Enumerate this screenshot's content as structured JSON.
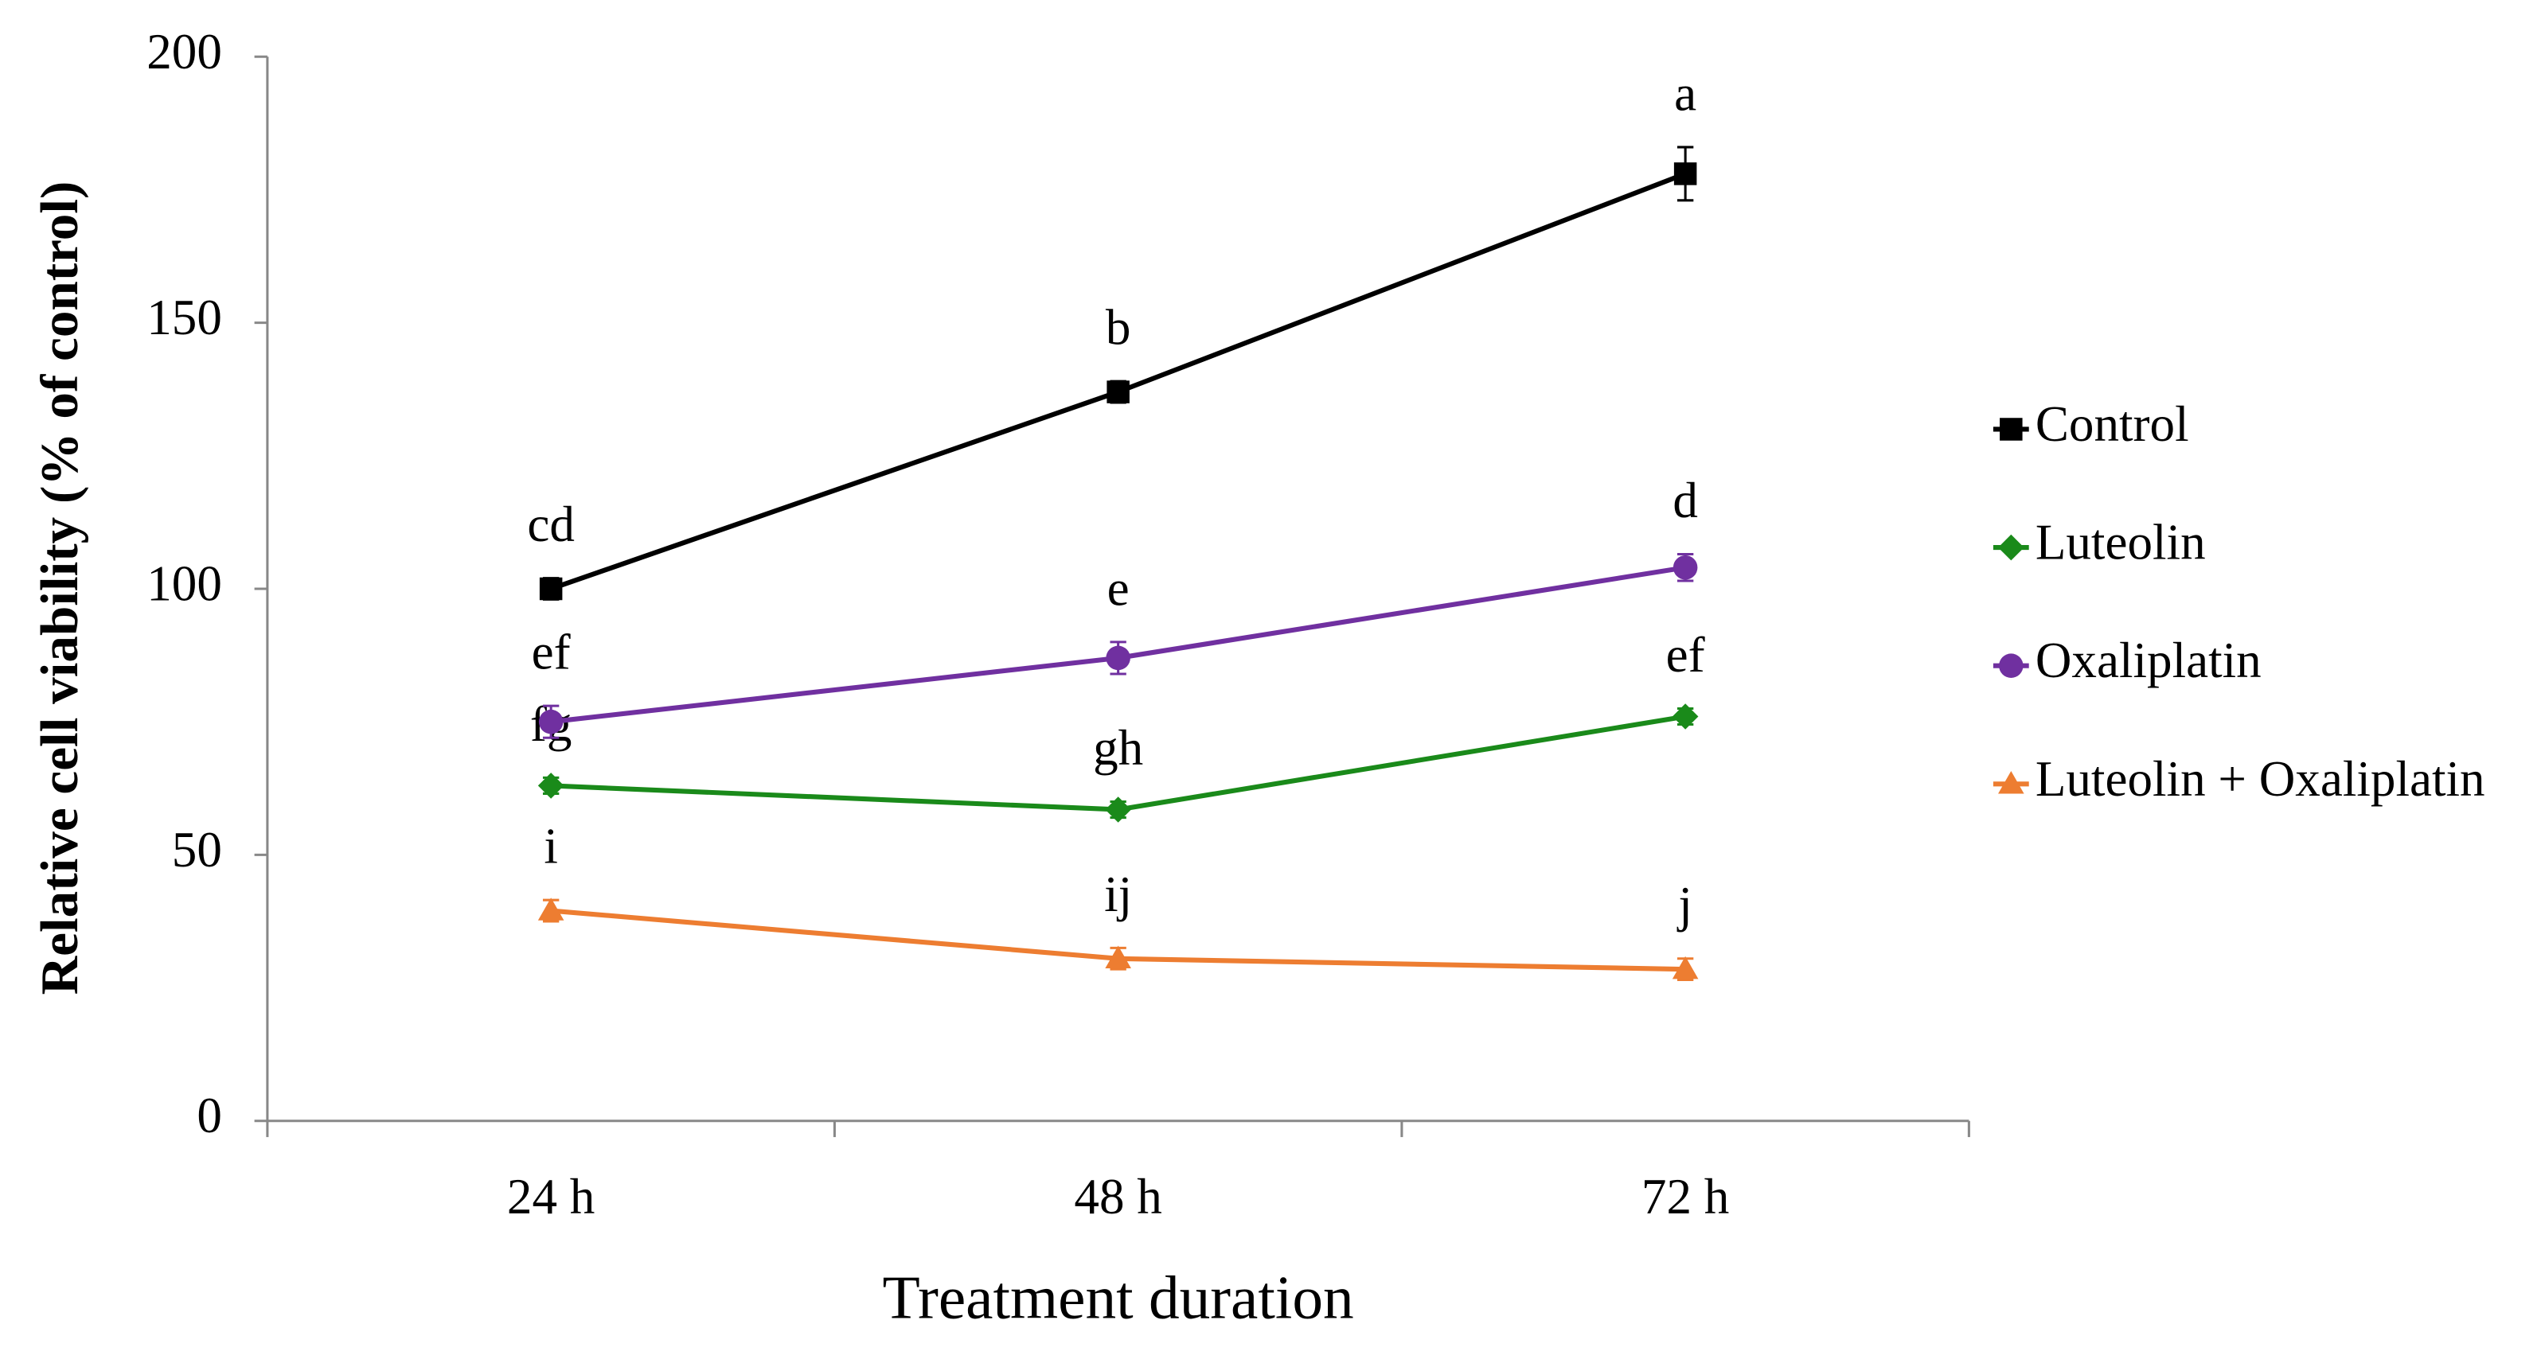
{
  "chart_data": {
    "type": "line",
    "x_label": "Treatment duration",
    "y_label": "Relative cell viability (% of control)",
    "categories": [
      "24 h",
      "48 h",
      "72 h"
    ],
    "ylim": [
      0,
      200
    ],
    "yticks": [
      0,
      50,
      100,
      150,
      200
    ],
    "grid": false,
    "legend": "right",
    "series": [
      {
        "name": "Control",
        "color": "#000000",
        "marker": "square",
        "values": [
          100,
          137,
          178
        ],
        "errors": [
          2,
          2,
          5
        ],
        "annotations": [
          "cd",
          "b",
          "a"
        ]
      },
      {
        "name": "Luteolin",
        "color": "#1a8a1a",
        "marker": "diamond",
        "values": [
          63,
          58.5,
          76
        ],
        "errors": [
          1.5,
          1.5,
          1.5
        ],
        "annotations": [
          "fg",
          "gh",
          "ef"
        ]
      },
      {
        "name": "Oxaliplatin",
        "color": "#7030a0",
        "marker": "circle",
        "values": [
          75,
          87,
          104
        ],
        "errors": [
          3,
          3,
          2.5
        ],
        "annotations": [
          "ef",
          "e",
          "d"
        ]
      },
      {
        "name": "Luteolin + Oxaliplatin",
        "color": "#ed7d31",
        "marker": "triangle",
        "values": [
          39.5,
          30.5,
          28.5
        ],
        "errors": [
          2,
          2,
          2
        ],
        "annotations": [
          "i",
          "ij",
          "j"
        ]
      }
    ]
  }
}
